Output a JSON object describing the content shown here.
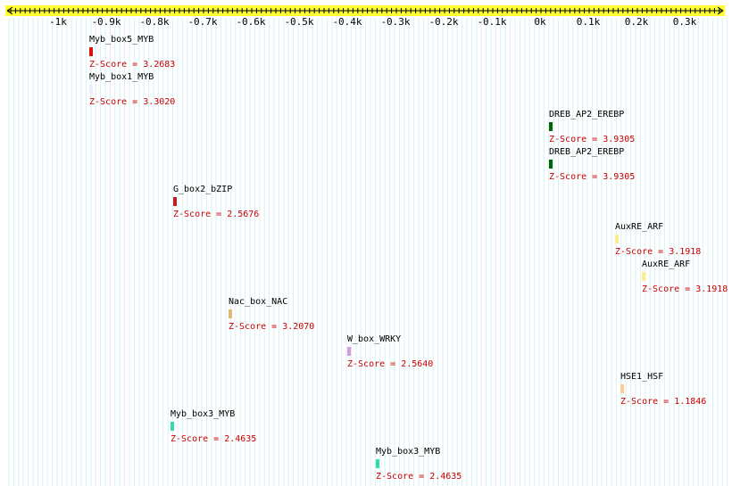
{
  "axis": {
    "color": "#ffff33",
    "ticks": [
      "-1k",
      "-0.9k",
      "-0.8k",
      "-0.7k",
      "-0.6k",
      "-0.5k",
      "-0.4k",
      "-0.3k",
      "-0.2k",
      "-0.1k",
      "0k",
      "0.1k",
      "0.2k",
      "0.3k"
    ]
  },
  "score_color": "#cc0000",
  "sites": [
    {
      "name": "Myb_box5_MYB",
      "score": "Z-Score = 3.2683",
      "color": "#dd1111"
    },
    {
      "name": "Myb_box1_MYB",
      "score": "Z-Score = 3.3020",
      "color": "#eeeeff"
    },
    {
      "name": "DREB_AP2_EREBP",
      "score": "Z-Score = 3.9305",
      "color": "#006600"
    },
    {
      "name": "DREB_AP2_EREBP",
      "score": "Z-Score = 3.9305",
      "color": "#006600"
    },
    {
      "name": "G_box2_bZIP",
      "score": "Z-Score = 2.5676",
      "color": "#bb2222"
    },
    {
      "name": "AuxRE_ARF",
      "score": "Z-Score = 3.1918",
      "color": "#ffee88"
    },
    {
      "name": "AuxRE_ARF",
      "score": "Z-Score = 3.1918",
      "color": "#ffee88"
    },
    {
      "name": "Nac_box_NAC",
      "score": "Z-Score = 3.2070",
      "color": "#ddbb77"
    },
    {
      "name": "W_box_WRKY",
      "score": "Z-Score = 2.5640",
      "color": "#dd99dd"
    },
    {
      "name": "HSE1_HSF",
      "score": "Z-Score = 1.1846",
      "color": "#ffcc99"
    },
    {
      "name": "Myb_box3_MYB",
      "score": "Z-Score = 2.4635",
      "color": "#33ddaa"
    },
    {
      "name": "Myb_box3_MYB",
      "score": "Z-Score = 2.4635",
      "color": "#33ddaa"
    }
  ]
}
